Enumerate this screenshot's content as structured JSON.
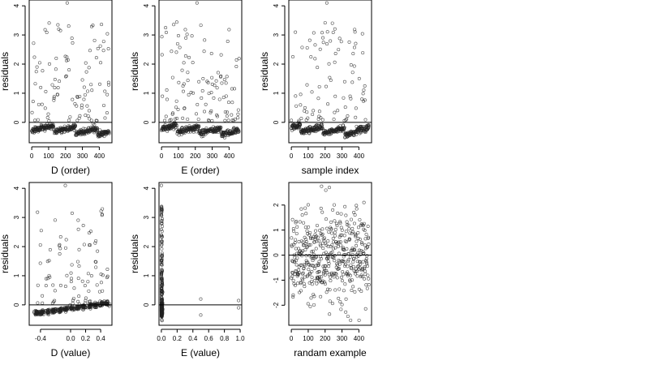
{
  "chart_data": [
    {
      "type": "scatter",
      "xlabel": "D (order)",
      "ylabel": "residuals",
      "xlim": [
        -15,
        475
      ],
      "ylim": [
        -0.7,
        4.2
      ],
      "xticks": [
        0,
        100,
        200,
        300,
        400
      ],
      "yticks": [
        0,
        1,
        2,
        3,
        4
      ],
      "hline": 0,
      "points": {
        "kind": "order",
        "seed": 11,
        "n": 460,
        "offset": 0
      }
    },
    {
      "type": "scatter",
      "xlabel": "E (order)",
      "ylabel": "residuals",
      "xlim": [
        -15,
        475
      ],
      "ylim": [
        -0.7,
        4.2
      ],
      "xticks": [
        0,
        100,
        200,
        300,
        400
      ],
      "yticks": [
        0,
        1,
        2,
        3,
        4
      ],
      "hline": 0,
      "points": {
        "kind": "order",
        "seed": 23,
        "n": 460,
        "offset": 1
      }
    },
    {
      "type": "scatter",
      "xlabel": "sample index",
      "ylabel": "residuals",
      "xlim": [
        -15,
        475
      ],
      "ylim": [
        -0.7,
        4.2
      ],
      "xticks": [
        0,
        100,
        200,
        300,
        400
      ],
      "yticks": [
        0,
        1,
        2,
        3,
        4
      ],
      "hline": 0,
      "points": {
        "kind": "order",
        "seed": 37,
        "n": 460,
        "offset": 2
      }
    },
    {
      "type": "scatter",
      "xlabel": "D (value)",
      "ylabel": "residuals",
      "xlim": [
        -0.55,
        0.55
      ],
      "ylim": [
        -0.7,
        4.2
      ],
      "xticks": [
        -0.4,
        0.0,
        0.2,
        0.4
      ],
      "xtick_labels": [
        "-0.4",
        "0.0",
        "0.2",
        "0.4"
      ],
      "yticks": [
        0,
        1,
        2,
        3,
        4
      ],
      "hline": 0,
      "points": {
        "kind": "dvalue",
        "seed": 51,
        "n": 460
      }
    },
    {
      "type": "scatter",
      "xlabel": "E (value)",
      "ylabel": "residuals",
      "xlim": [
        -0.03,
        1.02
      ],
      "ylim": [
        -0.7,
        4.2
      ],
      "xticks": [
        0.0,
        0.2,
        0.4,
        0.6,
        0.8,
        1.0
      ],
      "xtick_labels": [
        "0.0",
        "0.2",
        "0.4",
        "0.6",
        "0.8",
        "1.0"
      ],
      "yticks": [
        0,
        1,
        2,
        3,
        4
      ],
      "hline": 0,
      "points": {
        "kind": "evalue",
        "seed": 67,
        "n": 460
      }
    },
    {
      "type": "scatter",
      "xlabel": "randam example",
      "ylabel": "residuals",
      "xlim": [
        -15,
        475
      ],
      "ylim": [
        -2.8,
        2.9
      ],
      "xticks": [
        0,
        100,
        200,
        300,
        400
      ],
      "yticks": [
        -2,
        -1,
        0,
        1,
        2
      ],
      "hline": 0,
      "points": {
        "kind": "normal",
        "seed": 89,
        "n": 460
      }
    }
  ]
}
